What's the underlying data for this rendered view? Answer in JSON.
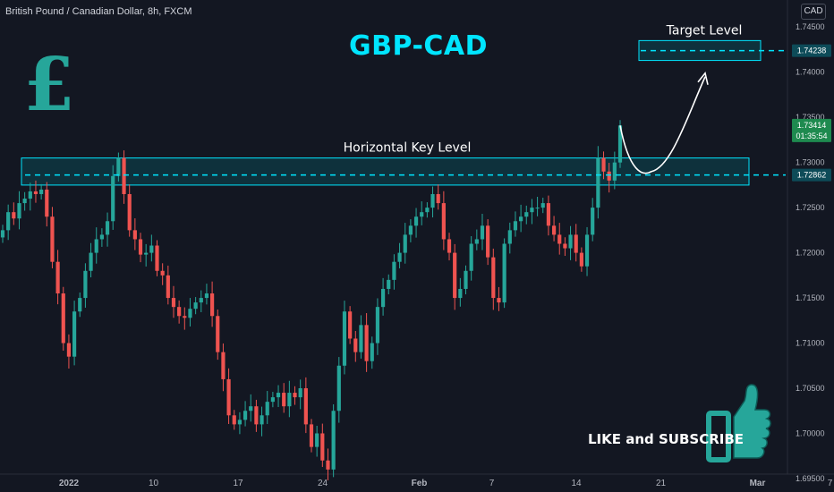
{
  "header": {
    "symbol": "British Pound / Canadian Dollar, 8h, FXCM",
    "currency": "CAD"
  },
  "title": "GBP-CAD",
  "cta": "LIKE and SUBSCRIBE",
  "icons": [
    "pound-sterling-icon",
    "thumbs-up-icon"
  ],
  "colors": {
    "background": "#131722",
    "up": "#26a69a",
    "down": "#ef5350",
    "accent": "#00e5ff",
    "zone_fill": "#0e3b45",
    "pound_icon": "#26a69a",
    "thumb_icon": "#26a69a"
  },
  "chart_data": {
    "type": "candlestick",
    "symbol": "GBPCAD",
    "timeframe": "8h",
    "ylim": [
      1.6945,
      1.7475
    ],
    "y_ticks": [
      "1.74500",
      "1.74000",
      "1.73500",
      "1.73000",
      "1.72500",
      "1.72000",
      "1.71500",
      "1.71000",
      "1.70500",
      "1.70000",
      "1.69500"
    ],
    "x_ticks": [
      {
        "label": "2022",
        "x": "2022-01-03"
      },
      {
        "label": "10",
        "x": "2022-01-10"
      },
      {
        "label": "17",
        "x": "2022-01-17"
      },
      {
        "label": "24",
        "x": "2022-01-24"
      },
      {
        "label": "Feb",
        "x": "2022-02-01"
      },
      {
        "label": "7",
        "x": "2022-02-07"
      },
      {
        "label": "14",
        "x": "2022-02-14"
      },
      {
        "label": "21",
        "x": "2022-02-21"
      },
      {
        "label": "Mar",
        "x": "2022-03-01"
      },
      {
        "label": "7",
        "x": "2022-03-07"
      }
    ],
    "annotations": {
      "horizontal_key_level": {
        "label": "Horizontal Key Level",
        "zone": [
          1.7275,
          1.7305
        ],
        "line": 1.72862,
        "value_label": "1.72862"
      },
      "target_level": {
        "label": "Target Level",
        "zone": [
          1.7413,
          1.7435
        ],
        "line": 1.74238,
        "value_label": "1.74238"
      },
      "current_price": {
        "value": 1.73414,
        "value_label": "1.73414",
        "countdown": "01:35:54"
      }
    },
    "path_points": [
      1.7341,
      1.7295,
      1.729,
      1.7395
    ],
    "closes": [
      1.7225,
      1.7245,
      1.7238,
      1.7255,
      1.726,
      1.7268,
      1.7265,
      1.727,
      1.724,
      1.719,
      1.7155,
      1.71,
      1.7085,
      1.7135,
      1.715,
      1.718,
      1.72,
      1.7215,
      1.722,
      1.7235,
      1.7285,
      1.7305,
      1.7265,
      1.7225,
      1.7215,
      1.7198,
      1.72,
      1.7208,
      1.718,
      1.7175,
      1.715,
      1.714,
      1.713,
      1.7128,
      1.7138,
      1.7145,
      1.715,
      1.7155,
      1.713,
      1.709,
      1.706,
      1.702,
      1.701,
      1.7015,
      1.7025,
      1.703,
      1.701,
      1.702,
      1.7035,
      1.704,
      1.7045,
      1.703,
      1.7045,
      1.704,
      1.705,
      1.701,
      1.6985,
      1.7,
      1.697,
      1.696,
      1.7025,
      1.7075,
      1.7135,
      1.7105,
      1.709,
      1.712,
      1.708,
      1.71,
      1.714,
      1.716,
      1.717,
      1.719,
      1.72,
      1.722,
      1.723,
      1.724,
      1.7245,
      1.725,
      1.7265,
      1.7255,
      1.7215,
      1.72,
      1.715,
      1.716,
      1.718,
      1.721,
      1.7215,
      1.723,
      1.7195,
      1.715,
      1.7145,
      1.721,
      1.7225,
      1.7235,
      1.724,
      1.7245,
      1.725,
      1.725,
      1.7255,
      1.723,
      1.722,
      1.721,
      1.7205,
      1.722,
      1.72,
      1.7185,
      1.722,
      1.725,
      1.7305,
      1.729,
      1.728,
      1.73,
      1.7341
    ]
  }
}
